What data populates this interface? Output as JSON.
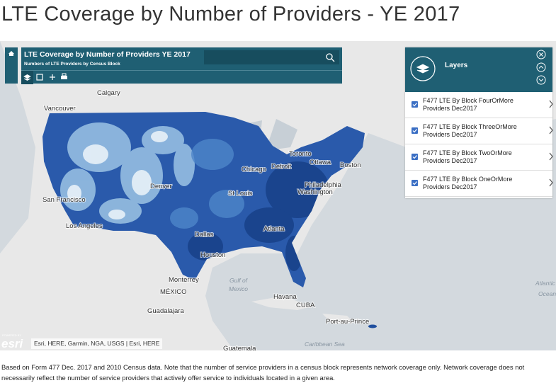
{
  "page_title": "LTE Coverage by Number of Providers - YE 2017",
  "panel": {
    "title": "LTE Coverage by Number of Providers YE 2017",
    "subtitle": "Numbers of LTE Providers by Census Block"
  },
  "layers": {
    "heading": "Layers",
    "items": [
      "F477 LTE By Block FourOrMore Providers Dec2017",
      "F477 LTE By Block ThreeOrMore Providers Dec2017",
      "F477 LTE By Block TwoOrMore Providers Dec2017",
      "F477 LTE By Block OneOrMore Providers Dec2017"
    ]
  },
  "places": [
    "Calgary",
    "Vancouver",
    "Ottawa",
    "Toronto",
    "Chicago",
    "Detroit",
    "Boston",
    "Denver",
    "St Louis",
    "Philadelphia",
    "Washington",
    "San Francisco",
    "Los Angeles",
    "Dallas",
    "Atlanta",
    "Houston",
    "Monterrey",
    "MÉXICO",
    "Havana",
    "CUBA",
    "Guadalajara",
    "Port-au-Prince",
    "Guatemala"
  ],
  "water": [
    "Gulf of",
    "Mexico",
    "Caribbean Sea",
    "Atlantic",
    "Ocean"
  ],
  "powered_by": "POWERED BY",
  "esri": "esri",
  "attribution": "Esri, HERE, Garmin, NGA, USGS | Esri, HERE",
  "footer": "Based on Form 477 Dec. 2017 and 2010 Census data. Note that the number of service providers in a census block represents network coverage only.  Network coverage does not necessarily reflect the number of service providers that actively offer service to individuals located in a given area."
}
